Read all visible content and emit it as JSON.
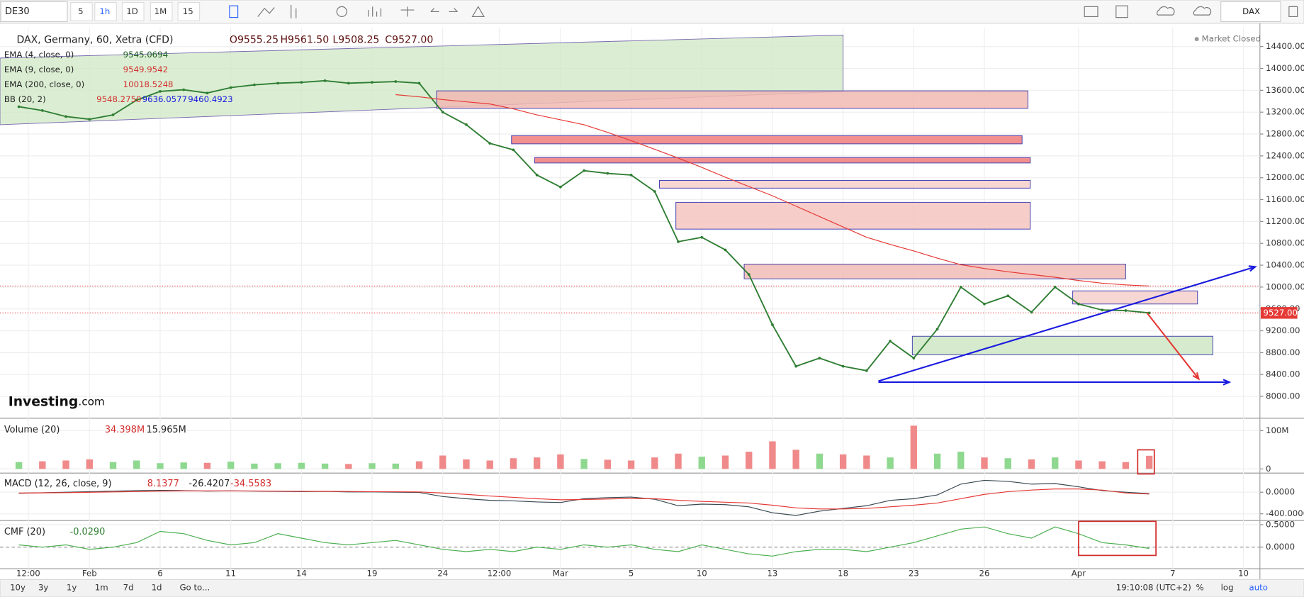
{
  "toolbar": {
    "symbol": "DE30",
    "intervals": [
      "5",
      "1h",
      "1D",
      "1M",
      "15"
    ],
    "active_interval": 1,
    "right_symbol": "DAX"
  },
  "logo": {
    "text": "Investing",
    "suffix": ".com"
  },
  "status": "Market Closed",
  "chart_data": [
    {
      "type": "line",
      "title": "DAX, Germany, 60, Xetra (CFD)",
      "ohlc": [
        "O9555.25",
        "H9561.50",
        "L9508.25",
        "C9527.00"
      ],
      "indicators": [
        {
          "name": "EMA (4, close, 0)",
          "values": [
            {
              "text": "9545.0694",
              "color": "#1b5e20"
            }
          ]
        },
        {
          "name": "EMA (9, close, 0)",
          "values": [
            {
              "text": "9549.9542",
              "color": "#d32f2f"
            }
          ]
        },
        {
          "name": "EMA (200, close, 0)",
          "values": [
            {
              "text": "10018.5248",
              "color": "#d32f2f"
            }
          ]
        },
        {
          "name": "BB (20, 2)",
          "values": [
            {
              "text": "9548.2750",
              "color": "#d32f2f"
            },
            {
              "text": "9636.0577",
              "color": "#1a1adf"
            },
            {
              "text": "9460.4923",
              "color": "#1a1adf"
            }
          ]
        }
      ],
      "x": [
        -3,
        -2,
        -1,
        0,
        1,
        2,
        3,
        4,
        5,
        6,
        7,
        8,
        9,
        10,
        11,
        12,
        13,
        14,
        15,
        16,
        17,
        18,
        19,
        20,
        21,
        22,
        23,
        24,
        25,
        26,
        27,
        28,
        29,
        30,
        31,
        32,
        33,
        34,
        35,
        36,
        37,
        38,
        39,
        40,
        41,
        42,
        43,
        44,
        45
      ],
      "xlim": [
        -3.8,
        49.7
      ],
      "xticks": [
        {
          "value": -2.6,
          "label": "12:00"
        },
        {
          "value": 0,
          "label": "Feb"
        },
        {
          "value": 3,
          "label": "6"
        },
        {
          "value": 6,
          "label": "11"
        },
        {
          "value": 9,
          "label": "14"
        },
        {
          "value": 12,
          "label": "19"
        },
        {
          "value": 15,
          "label": "24"
        },
        {
          "value": 17.4,
          "label": "12:00"
        },
        {
          "value": 20,
          "label": "Mar"
        },
        {
          "value": 23,
          "label": "5"
        },
        {
          "value": 26,
          "label": "10"
        },
        {
          "value": 29,
          "label": "13"
        },
        {
          "value": 32,
          "label": "18"
        },
        {
          "value": 35,
          "label": "23"
        },
        {
          "value": 38,
          "label": "26"
        },
        {
          "value": 42,
          "label": "Apr"
        },
        {
          "value": 46,
          "label": "7"
        },
        {
          "value": 49,
          "label": "10"
        }
      ],
      "ylim": [
        7600,
        14750
      ],
      "yticks": [
        {
          "value": 14400,
          "label": "14400.00"
        },
        {
          "value": 14000,
          "label": "14000.00"
        },
        {
          "value": 13600,
          "label": "13600.00"
        },
        {
          "value": 13200,
          "label": "13200.00"
        },
        {
          "value": 12800,
          "label": "12800.00"
        },
        {
          "value": 12400,
          "label": "12400.00"
        },
        {
          "value": 12000,
          "label": "12000.00"
        },
        {
          "value": 11600,
          "label": "11600.00"
        },
        {
          "value": 11200,
          "label": "11200.00"
        },
        {
          "value": 10800,
          "label": "10800.00"
        },
        {
          "value": 10400,
          "label": "10400.00"
        },
        {
          "value": 10000,
          "label": "10000.00"
        },
        {
          "value": 9600,
          "label": "9600.00"
        },
        {
          "value": 9200,
          "label": "9200.00"
        },
        {
          "value": 8800,
          "label": "8800.00"
        },
        {
          "value": 8400,
          "label": "8400.00"
        },
        {
          "value": 8000,
          "label": "8000.00"
        }
      ],
      "grid": true,
      "series": [
        {
          "name": "DAX, Germany, 60, Xetra (CFD)",
          "color": "#2e7d32",
          "values": [
            13300,
            13230,
            13120,
            13070,
            13150,
            13420,
            13580,
            13610,
            13550,
            13650,
            13700,
            13730,
            13745,
            13775,
            13730,
            13745,
            13760,
            13730,
            13200,
            12970,
            12630,
            12510,
            12050,
            11830,
            12130,
            12080,
            12050,
            11750,
            10830,
            10910,
            10680,
            10230,
            9310,
            8550,
            8700,
            8550,
            8470,
            9010,
            8700,
            9230,
            10000,
            9690,
            9840,
            9540,
            10000,
            9690,
            9580,
            9570,
            9527
          ]
        },
        {
          "name": "EMA (200, close, 0)",
          "color": "#e53935",
          "values": [
            null,
            null,
            null,
            null,
            null,
            null,
            null,
            null,
            null,
            null,
            null,
            null,
            null,
            null,
            null,
            null,
            13520,
            13480,
            13430,
            13390,
            13350,
            13260,
            13150,
            13060,
            12970,
            12830,
            12680,
            12520,
            12360,
            12190,
            12010,
            11840,
            11670,
            11480,
            11290,
            11100,
            10910,
            10780,
            10660,
            10530,
            10410,
            10340,
            10280,
            10230,
            10180,
            10120,
            10070,
            10040,
            10018.5
          ]
        }
      ],
      "channel": {
        "x": [
          -3.8,
          32
        ],
        "top": [
          14190,
          14610
        ],
        "bottom": [
          12970,
          13580
        ],
        "color": "#cfe8c4"
      },
      "zones": [
        {
          "x": [
            14.74,
            39.85
          ],
          "top": 13590,
          "bottom": 13270,
          "color": "#f1b9b3"
        },
        {
          "x": [
            17.92,
            39.6
          ],
          "top": 12770,
          "bottom": 12620,
          "color": "#f07b7b"
        },
        {
          "x": [
            18.9,
            39.95
          ],
          "top": 12370,
          "bottom": 12270,
          "color": "#f07b7b"
        },
        {
          "x": [
            24.2,
            39.95
          ],
          "top": 11950,
          "bottom": 11810,
          "color": "#f6cfcb"
        },
        {
          "x": [
            24.9,
            39.95
          ],
          "top": 11550,
          "bottom": 11060,
          "color": "#f4c4bf"
        },
        {
          "x": [
            27.8,
            44.0
          ],
          "top": 10420,
          "bottom": 10150,
          "color": "#f2bcb6"
        },
        {
          "x": [
            41.75,
            47.05
          ],
          "top": 9930,
          "bottom": 9690,
          "color": "#f6d0cc"
        },
        {
          "x": [
            34.94,
            47.7
          ],
          "top": 9100,
          "bottom": 8760,
          "color": "#cfe8c4"
        }
      ],
      "arrows": [
        {
          "x": [
            33.5,
            49.5
          ],
          "y": [
            8280,
            10370
          ],
          "color": "#1a1adf"
        },
        {
          "x": [
            33.5,
            48.4
          ],
          "y": [
            8260,
            8260
          ],
          "color": "#1a1adf"
        },
        {
          "x": [
            44.9,
            47.1
          ],
          "y": [
            9530,
            8320
          ],
          "color": "#e53935"
        }
      ],
      "price_lines": [
        {
          "value": 10018.5248,
          "color": "#e53935"
        },
        {
          "value": 9527,
          "color": "#e53935"
        }
      ],
      "last_price": {
        "value": 9527,
        "label": "9527.00",
        "color": "#e53935"
      }
    },
    {
      "type": "bar",
      "title": "Volume (20)",
      "legend_values": [
        {
          "text": "34.398M",
          "color": "#d32f2f"
        },
        {
          "text": "15.965M",
          "color": "#222222"
        }
      ],
      "up_color": "#8fd88f",
      "down_color": "#f08a8a",
      "ylim": [
        -8700000,
        128000000
      ],
      "yticks": [
        {
          "value": 100000000,
          "label": "100M"
        },
        0
      ],
      "values": [
        18000000,
        20000000,
        22000000,
        25000000,
        18000000,
        22000000,
        15000000,
        17000000,
        16000000,
        19000000,
        14000000,
        15000000,
        16000000,
        14000000,
        13000000,
        15000000,
        14000000,
        20000000,
        35000000,
        25000000,
        22000000,
        28000000,
        30000000,
        38000000,
        26000000,
        24000000,
        22000000,
        30000000,
        40000000,
        32000000,
        35000000,
        45000000,
        72000000,
        50000000,
        40000000,
        38000000,
        35000000,
        30000000,
        113000000,
        40000000,
        45000000,
        30000000,
        28000000,
        25000000,
        30000000,
        22000000,
        20000000,
        18000000,
        34398000
      ]
    },
    {
      "type": "line",
      "title": "MACD (12, 26, close, 9)",
      "legend_values": [
        {
          "text": "8.1377",
          "color": "#d32f2f"
        },
        {
          "text": "-26.4207",
          "color": "#222222"
        },
        {
          "text": "-34.5583",
          "color": "#d32f2f"
        }
      ],
      "ylim": [
        -508,
        338
      ],
      "yticks": [
        {
          "value": 0,
          "label": "0.0000"
        },
        {
          "value": -400,
          "label": "-400.0000"
        }
      ],
      "series": [
        {
          "color": "#37474f",
          "values": [
            -20,
            -10,
            0,
            10,
            20,
            30,
            35,
            30,
            20,
            25,
            20,
            15,
            10,
            15,
            5,
            5,
            0,
            -5,
            -80,
            -120,
            -150,
            -160,
            -180,
            -190,
            -120,
            -100,
            -90,
            -130,
            -250,
            -220,
            -230,
            -270,
            -380,
            -430,
            -350,
            -300,
            -250,
            -150,
            -120,
            -50,
            150,
            220,
            200,
            150,
            160,
            100,
            30,
            0,
            -26.4207
          ]
        },
        {
          "color": "#e53935",
          "values": [
            -15,
            -12,
            -8,
            -2,
            5,
            12,
            20,
            25,
            25,
            25,
            23,
            20,
            17,
            16,
            13,
            10,
            8,
            5,
            -15,
            -40,
            -70,
            -95,
            -120,
            -140,
            -135,
            -125,
            -115,
            -120,
            -150,
            -170,
            -185,
            -200,
            -240,
            -290,
            -310,
            -310,
            -300,
            -270,
            -240,
            -200,
            -120,
            -40,
            10,
            40,
            60,
            60,
            40,
            -15,
            -34.5583
          ]
        }
      ]
    },
    {
      "type": "line",
      "title": "CMF (20)",
      "legend_values": [
        {
          "text": "-0.0290",
          "color": "#2e7d32"
        }
      ],
      "ylim": [
        -0.463,
        0.556
      ],
      "yticks": [
        {
          "value": 0.5,
          "label": "0.5000"
        },
        {
          "value": 0,
          "label": "0.0000"
        }
      ],
      "series": [
        {
          "color": "#4caf50",
          "values": [
            0.05,
            0,
            0.05,
            -0.05,
            0,
            0.1,
            0.35,
            0.3,
            0.15,
            0.05,
            0.1,
            0.3,
            0.2,
            0.1,
            0.05,
            0.1,
            0.15,
            0.05,
            -0.05,
            -0.1,
            -0.05,
            -0.1,
            0,
            -0.05,
            0.05,
            0,
            0.05,
            -0.05,
            -0.1,
            0.05,
            -0.05,
            -0.15,
            -0.2,
            -0.1,
            -0.05,
            -0.05,
            -0.1,
            0,
            0.1,
            0.25,
            0.4,
            0.45,
            0.3,
            0.2,
            0.45,
            0.3,
            0.1,
            0.05,
            -0.029
          ]
        }
      ]
    }
  ],
  "bottom_bar": {
    "ranges": [
      "10y",
      "3y",
      "1y",
      "1m",
      "7d",
      "1d"
    ],
    "goto": "Go to...",
    "time": "19:10:08 (UTC+2)",
    "options": [
      "%",
      "log",
      "auto"
    ]
  }
}
